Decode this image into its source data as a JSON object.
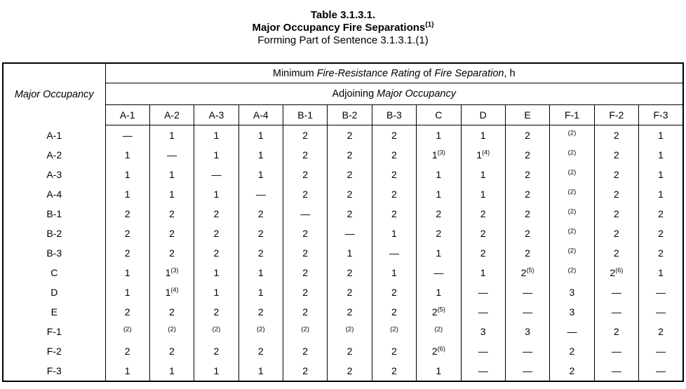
{
  "title": {
    "line1": "Table 3.1.3.1.",
    "line2_main": "Major Occupancy Fire Separations",
    "line2_sup": "(1)",
    "line3": "Forming Part of Sentence 3.1.3.1.(1)"
  },
  "table": {
    "corner_header": "Major Occupancy",
    "span_header_1": [
      {
        "t": "Minimum ",
        "i": false
      },
      {
        "t": "Fire-Resistance Rating",
        "i": true
      },
      {
        "t": " of ",
        "i": false
      },
      {
        "t": "Fire Separation",
        "i": true
      },
      {
        "t": ", h",
        "i": false
      }
    ],
    "span_header_2": [
      {
        "t": "Adjoining ",
        "i": false
      },
      {
        "t": "Major Occupancy",
        "i": true
      }
    ],
    "columns": [
      "A-1",
      "A-2",
      "A-3",
      "A-4",
      "B-1",
      "B-2",
      "B-3",
      "C",
      "D",
      "E",
      "F-1",
      "F-2",
      "F-3"
    ],
    "rows": [
      {
        "label": "A-1",
        "cells": [
          "—",
          "1",
          "1",
          "1",
          "2",
          "2",
          "2",
          "1",
          "1",
          "2",
          "^(2)",
          "2",
          "1"
        ]
      },
      {
        "label": "A-2",
        "cells": [
          "1",
          "—",
          "1",
          "1",
          "2",
          "2",
          "2",
          "1^(3)",
          "1^(4)",
          "2",
          "^(2)",
          "2",
          "1"
        ]
      },
      {
        "label": "A-3",
        "cells": [
          "1",
          "1",
          "—",
          "1",
          "2",
          "2",
          "2",
          "1",
          "1",
          "2",
          "^(2)",
          "2",
          "1"
        ]
      },
      {
        "label": "A-4",
        "cells": [
          "1",
          "1",
          "1",
          "—",
          "2",
          "2",
          "2",
          "1",
          "1",
          "2",
          "^(2)",
          "2",
          "1"
        ]
      },
      {
        "label": "B-1",
        "cells": [
          "2",
          "2",
          "2",
          "2",
          "—",
          "2",
          "2",
          "2",
          "2",
          "2",
          "^(2)",
          "2",
          "2"
        ]
      },
      {
        "label": "B-2",
        "cells": [
          "2",
          "2",
          "2",
          "2",
          "2",
          "—",
          "1",
          "2",
          "2",
          "2",
          "^(2)",
          "2",
          "2"
        ]
      },
      {
        "label": "B-3",
        "cells": [
          "2",
          "2",
          "2",
          "2",
          "2",
          "1",
          "—",
          "1",
          "2",
          "2",
          "^(2)",
          "2",
          "2"
        ]
      },
      {
        "label": "C",
        "cells": [
          "1",
          "1^(3)",
          "1",
          "1",
          "2",
          "2",
          "1",
          "—",
          "1",
          "2^(5)",
          "^(2)",
          "2^(6)",
          "1"
        ]
      },
      {
        "label": "D",
        "cells": [
          "1",
          "1^(4)",
          "1",
          "1",
          "2",
          "2",
          "2",
          "1",
          "—",
          "—",
          "3",
          "—",
          "—"
        ]
      },
      {
        "label": "E",
        "cells": [
          "2",
          "2",
          "2",
          "2",
          "2",
          "2",
          "2",
          "2^(5)",
          "—",
          "—",
          "3",
          "—",
          "—"
        ]
      },
      {
        "label": "F-1",
        "cells": [
          "^(2)",
          "^(2)",
          "^(2)",
          "^(2)",
          "^(2)",
          "^(2)",
          "^(2)",
          "^(2)",
          "3",
          "3",
          "—",
          "2",
          "2"
        ]
      },
      {
        "label": "F-2",
        "cells": [
          "2",
          "2",
          "2",
          "2",
          "2",
          "2",
          "2",
          "2^(6)",
          "—",
          "—",
          "2",
          "—",
          "—"
        ]
      },
      {
        "label": "F-3",
        "cells": [
          "1",
          "1",
          "1",
          "1",
          "2",
          "2",
          "2",
          "1",
          "—",
          "—",
          "2",
          "—",
          "—"
        ]
      }
    ]
  }
}
